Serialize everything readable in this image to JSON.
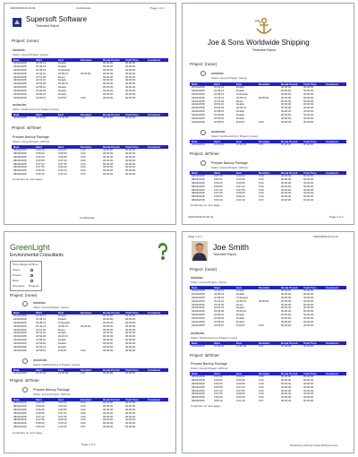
{
  "header": {
    "date": "30/04/2008 20:10:04",
    "confidential": "Confidential",
    "page_of": "Page 1 of 1",
    "page_of_alt": "Page 1 of 1"
  },
  "pages": [
    {
      "company": "Supersoft Software",
      "subtitle": "Timesheet Report",
      "project_label": "Project: (none)",
      "project_label_2": "Project: istTimer",
      "footer": "Confidential"
    },
    {
      "company": "Joe & Sons Worldwide Shipping",
      "subtitle": "Timesheet Report",
      "project_label": "Project: (none)",
      "project_label_2": "Project: istTimer",
      "footer_left": "30/04/2008 20:18:44",
      "footer_right": "Page 1 of 1"
    },
    {
      "company": "GreenLight",
      "company_sub": "Environmental Consultants",
      "project_label": "Project: (none)",
      "project_label_2": "Project: istTimer",
      "footer": "Page 1 of 1",
      "filter_labels": [
        "Time Range:",
        "Client:",
        "Project:",
        "Date:",
        "Grouping:"
      ],
      "filter_values": [
        "istTimer",
        "",
        "",
        "",
        "Projects"
      ]
    },
    {
      "company": "Joe Smith",
      "subtitle": "Timesheet Report",
      "project_label": "Project: (none)",
      "project_label_2": "Project: istTimer",
      "footer": "Printed by istTimer (www.istTimer.com)",
      "top_left": "Page 1 of 1",
      "top_right": "30/04/2008 20:11:21"
    }
  ],
  "table": {
    "columns": [
      "Date",
      "Start",
      "End",
      "Duration",
      "Break Period",
      "Total Time",
      "Comment"
    ],
    "group_none": "dadadas",
    "client_line": "Client: (none) Project: (none)",
    "rows": [
      [
        "04/02/2008",
        "22:32:21",
        "Details",
        "",
        "00:00:00",
        "00:00:00",
        ""
      ],
      [
        "04/02/2008",
        "22:38:21",
        "Details",
        "",
        "00:00:00",
        "00:00:00",
        ""
      ],
      [
        "04/02/2008",
        "22:38:21",
        "Umbeleite",
        "",
        "00:00:00",
        "00:00:00",
        ""
      ],
      [
        "04/02/2008",
        "22:44:21",
        "22:55:21",
        "00:00:00",
        "00:00:00",
        "00:00:00",
        ""
      ],
      [
        "04/02/2008",
        "22:51:00",
        "Reset",
        "",
        "00:00:00",
        "00:00:00",
        ""
      ],
      [
        "04/02/2008",
        "22:52:21",
        "Details",
        "",
        "00:00:00",
        "00:00:00",
        ""
      ],
      [
        "04/02/2008",
        "22:54:00",
        "23:20:21",
        "",
        "00:00:00",
        "00:00:00",
        ""
      ],
      [
        "04/02/2008",
        "22:58:21",
        "Details",
        "",
        "00:00:00",
        "00:00:00",
        ""
      ],
      [
        "04/02/2008",
        "22:59:00",
        "Details",
        "",
        "00:00:00",
        "00:00:00",
        ""
      ],
      [
        "04/02/2008",
        "22:59:21",
        "Details",
        "",
        "00:00:00",
        "00:00:00",
        ""
      ],
      [
        "04/02/2008",
        "22:59:57",
        "8:40:57",
        "0:00",
        "00:00:00",
        "00:00:00",
        ""
      ]
    ],
    "group2_name": "asdasdas",
    "client2_line": "Client: Smith and Co.2 Project: (none)",
    "rows2": [
      [
        "04/02/2008",
        "22:39:20",
        "21:00:05",
        "0.01",
        "00:00:00",
        "00:00:00",
        ""
      ]
    ],
    "group3_name": "Prepare Backup Package",
    "client3_line": "Client: (none) Project: istTimer",
    "rows3": [
      [
        "08/03/2008",
        "0:05:45",
        "0:06:02",
        "0.00",
        "00:00:00",
        "00:00:00",
        ""
      ],
      [
        "08/03/2008",
        "0:06:03",
        "0:06:25",
        "0.00",
        "00:00:00",
        "00:00:00",
        ""
      ],
      [
        "08/03/2008",
        "0:06:25",
        "0:06:55",
        "0.00",
        "00:00:00",
        "00:00:00",
        ""
      ],
      [
        "08/03/2008",
        "0:06:55",
        "0:07:22",
        "0.00",
        "00:00:00",
        "00:00:00",
        ""
      ],
      [
        "08/03/2008",
        "0:07:22",
        "0:07:55",
        "0.00",
        "00:00:00",
        "00:00:00",
        ""
      ],
      [
        "08/03/2008",
        "0:07:55",
        "0:08:30",
        "0.00",
        "00:00:00",
        "00:00:00",
        ""
      ],
      [
        "08/03/2008",
        "0:08:30",
        "0:09:10",
        "0.00",
        "00:00:00",
        "00:00:00",
        ""
      ],
      [
        "08/03/2008",
        "0:09:10",
        "0:42:10",
        "0.57",
        "00:00:00",
        "00:00:00",
        ""
      ]
    ],
    "continues": "Continues on next page..."
  },
  "colors": {
    "header_blue": "#1f1fd9",
    "green": "#3a7d1e"
  }
}
